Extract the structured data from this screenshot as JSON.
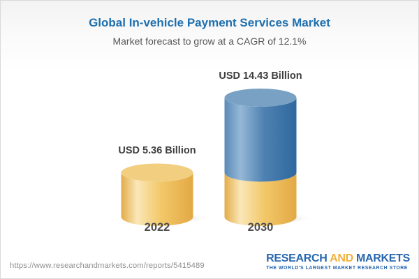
{
  "header": {
    "title": "Global In-vehicle Payment Services Market",
    "subtitle": "Market forecast to grow at a CAGR of 12.1%"
  },
  "chart_data": {
    "type": "bar",
    "style": "3d-cylinder",
    "title": "Global In-vehicle Payment Services Market",
    "subtitle": "Market forecast to grow at a CAGR of 12.1%",
    "unit": "USD Billion",
    "cagr_pct": 12.1,
    "categories": [
      "2022",
      "2030"
    ],
    "values": [
      5.36,
      14.43
    ],
    "bars": [
      {
        "category": "2022",
        "value": 5.36,
        "label": "USD 5.36 Billion",
        "segments": [
          {
            "value": 5.36,
            "palette": "gold"
          }
        ]
      },
      {
        "category": "2030",
        "value": 14.43,
        "label": "USD 14.43 Billion",
        "segments": [
          {
            "value": 5.36,
            "palette": "gold"
          },
          {
            "value": 9.07,
            "palette": "blue"
          }
        ]
      }
    ],
    "palettes": {
      "gold": {
        "top": "#F2CE81",
        "stops": [
          [
            0,
            "#E3AC49"
          ],
          [
            0.22,
            "#FAE7B8"
          ],
          [
            0.55,
            "#F3C869"
          ],
          [
            1,
            "#E2A944"
          ]
        ]
      },
      "blue": {
        "top": "#78A1C4",
        "stops": [
          [
            0,
            "#5A8AB8"
          ],
          [
            0.22,
            "#95B8D6"
          ],
          [
            0.55,
            "#4E81B1"
          ],
          [
            1,
            "#2E689E"
          ]
        ]
      }
    },
    "title_color": "#1E6FAE",
    "legend": "none",
    "grid": false
  },
  "footer": {
    "url": "https://www.researchandmarkets.com/reports/5415489",
    "logo": {
      "part1": "RESEARCH",
      "part2": "AND",
      "part3": "MARKETS",
      "tagline": "THE WORLD'S LARGEST MARKET RESEARCH STORE",
      "blue": "#2767AE",
      "gold": "#F0B13C"
    }
  }
}
